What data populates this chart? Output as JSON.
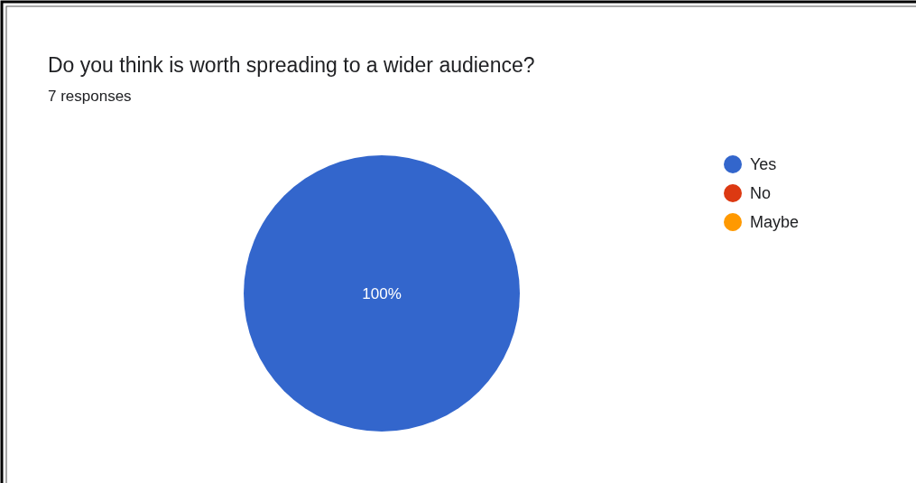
{
  "chart_data": {
    "type": "pie",
    "title": "Do you think is worth spreading to a wider audience?",
    "subtitle": "7 responses",
    "categories": [
      "Yes",
      "No",
      "Maybe"
    ],
    "values": [
      100,
      0,
      0
    ],
    "colors": [
      "#3366cc",
      "#dc3912",
      "#ff9900"
    ],
    "value_labels": [
      "100%",
      null,
      null
    ],
    "legend": "right"
  }
}
